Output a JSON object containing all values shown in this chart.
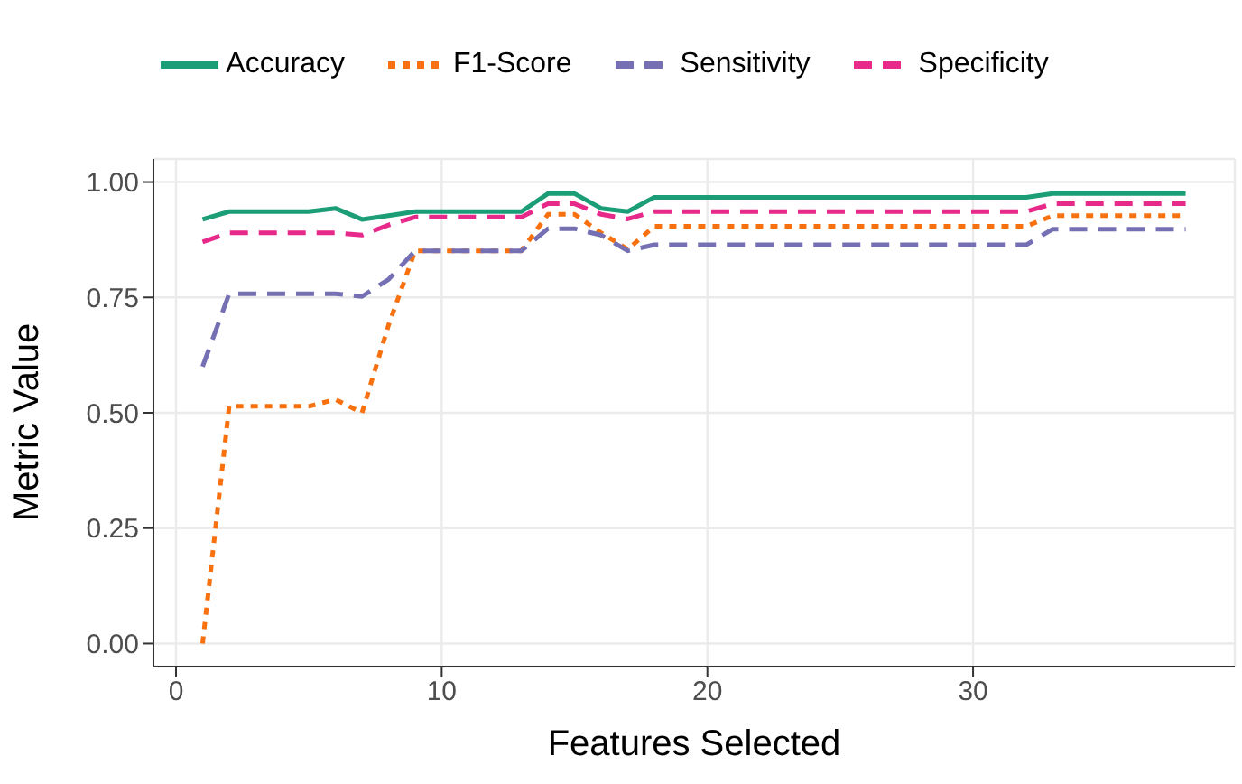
{
  "chart_data": {
    "type": "line",
    "xlabel": "Features Selected",
    "ylabel": "Metric Value",
    "x": [
      1,
      2,
      3,
      4,
      5,
      6,
      7,
      8,
      9,
      10,
      11,
      12,
      13,
      14,
      15,
      16,
      17,
      18,
      19,
      20,
      21,
      22,
      23,
      24,
      25,
      26,
      27,
      28,
      29,
      30,
      31,
      32,
      33,
      34,
      35,
      36,
      37,
      38
    ],
    "series": [
      {
        "name": "Accuracy",
        "color": "#1b9e77",
        "line_style": "solid",
        "values": [
          0.919,
          0.936,
          0.936,
          0.936,
          0.936,
          0.943,
          0.919,
          0.927,
          0.936,
          0.936,
          0.936,
          0.936,
          0.936,
          0.975,
          0.975,
          0.943,
          0.936,
          0.967,
          0.967,
          0.967,
          0.967,
          0.967,
          0.967,
          0.967,
          0.967,
          0.967,
          0.967,
          0.967,
          0.967,
          0.967,
          0.967,
          0.967,
          0.975,
          0.975,
          0.975,
          0.975,
          0.975,
          0.975
        ]
      },
      {
        "name": "F1-Score",
        "color": "#f8710e",
        "line_style": "dotted",
        "values": [
          0,
          0.514,
          0.514,
          0.514,
          0.514,
          0.529,
          0.5,
          0.69,
          0.851,
          0.851,
          0.851,
          0.851,
          0.851,
          0.93,
          0.93,
          0.89,
          0.854,
          0.904,
          0.904,
          0.904,
          0.904,
          0.904,
          0.904,
          0.904,
          0.904,
          0.904,
          0.904,
          0.904,
          0.904,
          0.904,
          0.904,
          0.904,
          0.927,
          0.927,
          0.927,
          0.927,
          0.927,
          0.927
        ]
      },
      {
        "name": "Sensitivity",
        "color": "#7570b3",
        "line_style": "dashed",
        "values": [
          0.6,
          0.758,
          0.758,
          0.758,
          0.758,
          0.758,
          0.752,
          0.789,
          0.851,
          0.851,
          0.851,
          0.851,
          0.851,
          0.899,
          0.899,
          0.885,
          0.851,
          0.864,
          0.864,
          0.864,
          0.864,
          0.864,
          0.864,
          0.864,
          0.864,
          0.864,
          0.864,
          0.864,
          0.864,
          0.864,
          0.864,
          0.864,
          0.898,
          0.898,
          0.898,
          0.898,
          0.898,
          0.898
        ]
      },
      {
        "name": "Specificity",
        "color": "#e7298a",
        "line_style": "dashed",
        "values": [
          0.87,
          0.89,
          0.89,
          0.89,
          0.89,
          0.89,
          0.885,
          0.907,
          0.924,
          0.924,
          0.924,
          0.924,
          0.924,
          0.953,
          0.953,
          0.93,
          0.92,
          0.936,
          0.936,
          0.936,
          0.936,
          0.936,
          0.936,
          0.936,
          0.936,
          0.936,
          0.936,
          0.936,
          0.936,
          0.936,
          0.936,
          0.936,
          0.953,
          0.953,
          0.953,
          0.953,
          0.953,
          0.953
        ]
      }
    ],
    "xlim": [
      -0.85,
      39.85
    ],
    "xticks": [
      0,
      10,
      20,
      30
    ],
    "ylim": [
      -0.05,
      1.05
    ],
    "yticks": [
      {
        "value": 0,
        "label": "0.00"
      },
      {
        "value": 0.25,
        "label": "0.25"
      },
      {
        "value": 0.5,
        "label": "0.50"
      },
      {
        "value": 0.75,
        "label": "0.75"
      },
      {
        "value": 1,
        "label": "1.00"
      }
    ],
    "grid": true,
    "legend": "top",
    "marker": "none"
  }
}
